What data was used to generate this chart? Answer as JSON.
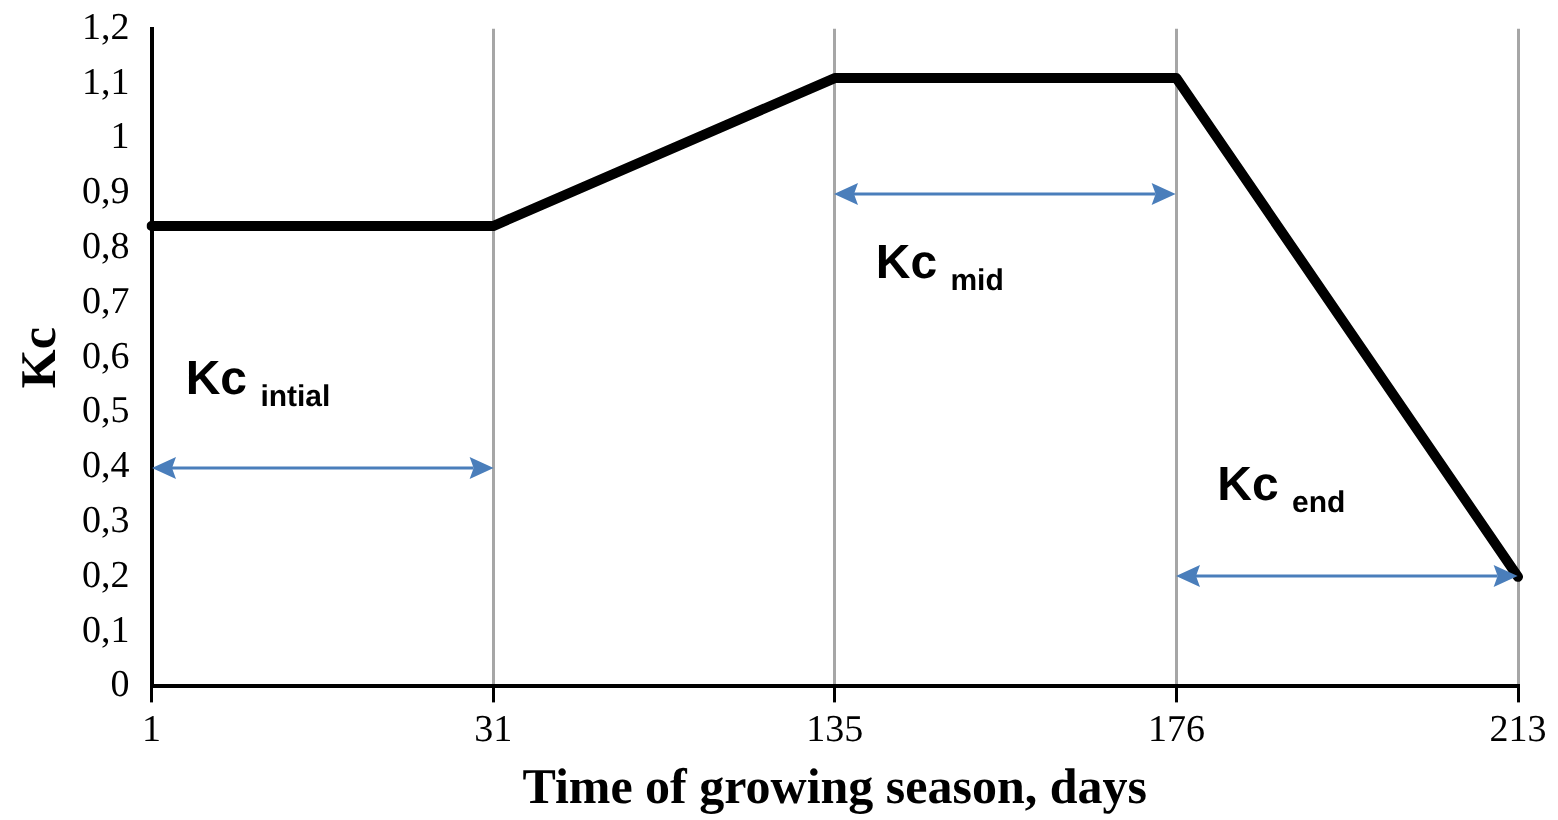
{
  "chart_data": {
    "type": "line",
    "xlabel": "Time of growing season, days",
    "ylabel": "Kc",
    "categories": [
      "1",
      "31",
      "135",
      "176",
      "213"
    ],
    "series": [
      {
        "color": "#000000",
        "values": [
          0.84,
          0.84,
          1.11,
          1.11,
          0.2
        ]
      }
    ],
    "ylim": [
      0,
      1.2
    ],
    "yticks": [
      0,
      {
        "value": 0.1,
        "label": "0,1"
      },
      {
        "value": 0.2,
        "label": "0,2"
      },
      {
        "value": 0.3,
        "label": "0,3"
      },
      {
        "value": 0.4,
        "label": "0,4"
      },
      {
        "value": 0.5,
        "label": "0,5"
      },
      {
        "value": 0.6,
        "label": "0,6"
      },
      {
        "value": 0.7,
        "label": "0,7"
      },
      {
        "value": 0.8,
        "label": "0,8"
      },
      {
        "value": 0.9,
        "label": "0,9"
      },
      1,
      {
        "value": 1.1,
        "label": "1,1"
      },
      {
        "value": 1.2,
        "label": "1,2"
      }
    ],
    "grid": "x",
    "legend": false,
    "marker": "none",
    "line_style": "solid",
    "annotations": [
      "Kc $_{intial}$",
      "Kc $_{mid}$",
      "Kc $_{end}$"
    ]
  }
}
